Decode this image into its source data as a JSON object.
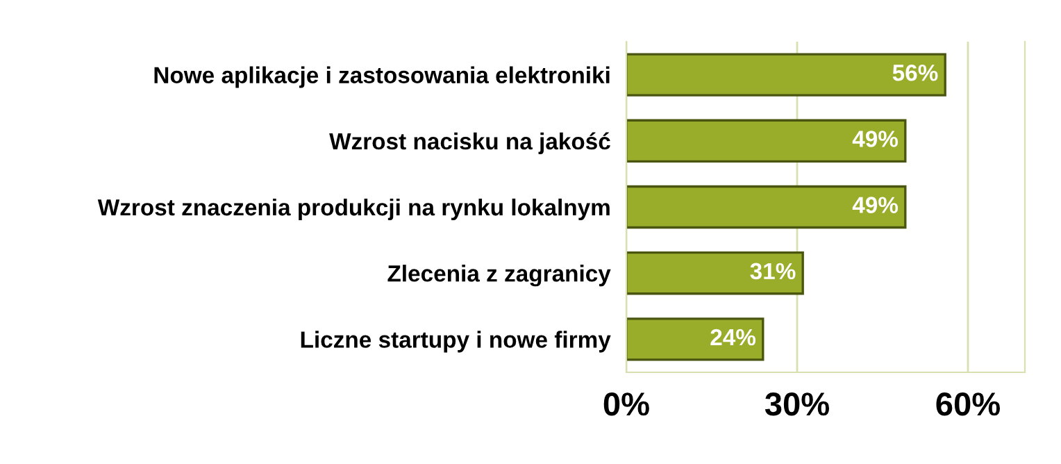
{
  "chart_data": {
    "type": "bar",
    "orientation": "horizontal",
    "categories": [
      "Nowe aplikacje i zastosowania elektroniki",
      "Wzrost nacisku na jakość",
      "Wzrost znaczenia produkcji na rynku lokalnym",
      "Zlecenia z zagranicy",
      "Liczne startupy i nowe firmy"
    ],
    "values": [
      56,
      49,
      49,
      31,
      24
    ],
    "value_labels": [
      "56%",
      "49%",
      "49%",
      "31%",
      "24%"
    ],
    "color": "#9aad2a",
    "xlim": [
      0,
      70
    ],
    "xticks": [
      {
        "value": 0,
        "label": "0%"
      },
      {
        "value": 30,
        "label": "30%"
      },
      {
        "value": 60,
        "label": "60%"
      }
    ],
    "grid": "x"
  }
}
